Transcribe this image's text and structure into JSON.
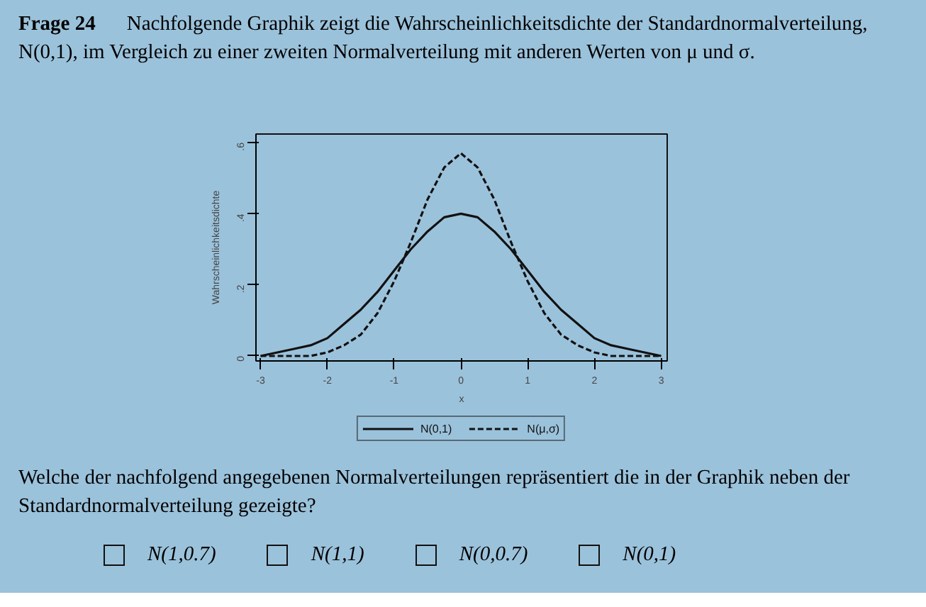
{
  "chart_data": {
    "type": "line",
    "title": "Frage 24",
    "subtitle": "Nachfolgende Graphik zeigt die Wahrscheinlichkeitsdichte der Standardnormalverteilung, N(0,1), im Vergleich zu einer zweiten Normalverteilung mit anderen Werten von μ und σ.",
    "annotations": [
      "Welche der nachfolgend angegebenen Normalverteilungen repräsentiert die in der Graphik neben der Standardnormalverteilung gezeigte?",
      "N(1,0.7)",
      "N(1,1)",
      "N(0,0.7)",
      "N(0,1)"
    ],
    "xlabel": "x",
    "ylabel": "Wahrscheinlichkeitsdichte",
    "x": [
      -3,
      -2.75,
      -2.5,
      -2.25,
      -2,
      -1.75,
      -1.5,
      -1.25,
      -1,
      -0.75,
      -0.5,
      -0.25,
      0,
      0.25,
      0.5,
      0.75,
      1,
      1.25,
      1.5,
      1.75,
      2,
      2.25,
      2.5,
      2.75,
      3
    ],
    "series": [
      {
        "name": "N(0,1)",
        "color": "#111111",
        "line_style": "solid",
        "values": [
          0.0,
          0.01,
          0.02,
          0.03,
          0.05,
          0.09,
          0.13,
          0.18,
          0.24,
          0.3,
          0.35,
          0.39,
          0.4,
          0.39,
          0.35,
          0.3,
          0.24,
          0.18,
          0.13,
          0.09,
          0.05,
          0.03,
          0.02,
          0.01,
          0.0
        ]
      },
      {
        "name": "N(μ,σ)",
        "color": "#111111",
        "line_style": "dashed",
        "values": [
          0.0,
          0.0,
          0.0,
          0.0,
          0.01,
          0.03,
          0.06,
          0.12,
          0.21,
          0.32,
          0.44,
          0.53,
          0.57,
          0.53,
          0.44,
          0.32,
          0.21,
          0.12,
          0.06,
          0.03,
          0.01,
          0.0,
          0.0,
          0.0,
          0.0
        ]
      }
    ],
    "xlim": [
      -3.07,
      3.09
    ],
    "ylim": [
      -0.014,
      0.624
    ],
    "xticks": [
      {
        "value": -3,
        "label": "-3"
      },
      {
        "value": -2,
        "label": "-2"
      },
      {
        "value": -1,
        "label": "-1"
      },
      0,
      1,
      2,
      3
    ],
    "yticks": [
      0,
      {
        "value": 0.2,
        "label": ".2"
      },
      {
        "value": 0.4,
        "label": ".4"
      },
      {
        "value": 0.6,
        "label": ".6"
      }
    ],
    "legend": "bottom"
  }
}
